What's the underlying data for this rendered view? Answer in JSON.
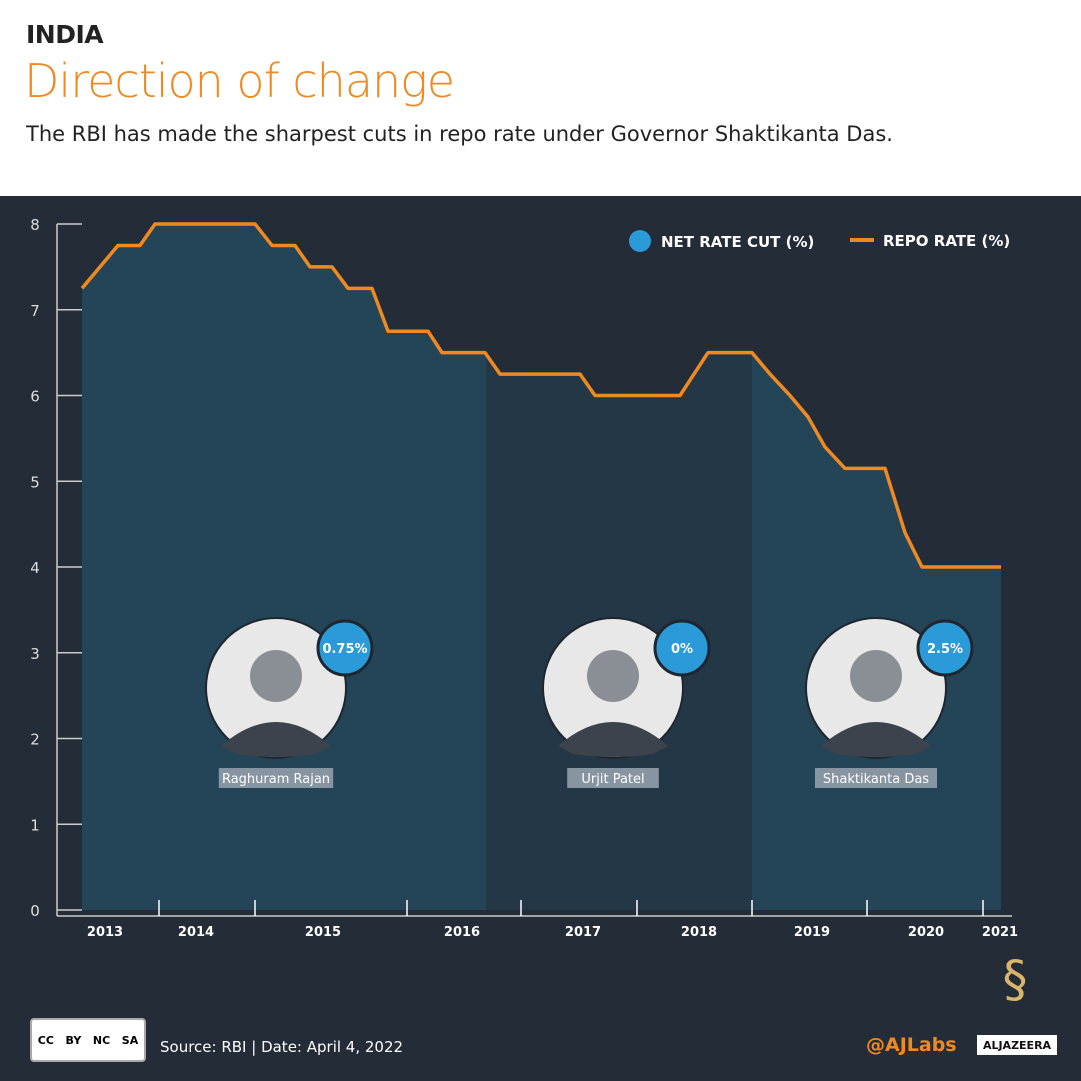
{
  "header": {
    "kicker": "INDIA",
    "title": "Direction of change",
    "subtitle": "The RBI has made the sharpest cuts in repo rate under Governor Shaktikanta Das."
  },
  "chart_data": {
    "type": "area",
    "ylim": [
      0,
      8
    ],
    "yticks": [
      "0",
      "1",
      "2",
      "3",
      "4",
      "5",
      "6",
      "7",
      "8"
    ],
    "xticks": [
      "2013",
      "2014",
      "2015",
      "2016",
      "2017",
      "2018",
      "2019",
      "2020",
      "2021"
    ],
    "legend": [
      {
        "name": "NET RATE CUT (%)",
        "color": "#2a9ad8",
        "marker": "circle"
      },
      {
        "name": "REPO RATE (%)",
        "color": "#ef8a22",
        "marker": "line"
      }
    ],
    "legend_position": "top-right",
    "series": [
      {
        "name": "REPO RATE (%)",
        "points": [
          {
            "date": "2013-09",
            "value": 7.25
          },
          {
            "date": "2013-10",
            "value": 7.5
          },
          {
            "date": "2013-10",
            "value": 7.75
          },
          {
            "date": "2013-12",
            "value": 7.75
          },
          {
            "date": "2014-01",
            "value": 8.0
          },
          {
            "date": "2014-12",
            "value": 8.0
          },
          {
            "date": "2015-01",
            "value": 7.75
          },
          {
            "date": "2015-02",
            "value": 7.75
          },
          {
            "date": "2015-03",
            "value": 7.5
          },
          {
            "date": "2015-05",
            "value": 7.5
          },
          {
            "date": "2015-06",
            "value": 7.25
          },
          {
            "date": "2015-08",
            "value": 7.25
          },
          {
            "date": "2015-09",
            "value": 6.75
          },
          {
            "date": "2016-03",
            "value": 6.75
          },
          {
            "date": "2016-04",
            "value": 6.5
          },
          {
            "date": "2016-09",
            "value": 6.5
          },
          {
            "date": "2016-10",
            "value": 6.25
          },
          {
            "date": "2017-07",
            "value": 6.25
          },
          {
            "date": "2017-08",
            "value": 6.0
          },
          {
            "date": "2018-05",
            "value": 6.0
          },
          {
            "date": "2018-08",
            "value": 6.5
          },
          {
            "date": "2018-12",
            "value": 6.5
          },
          {
            "date": "2019-02",
            "value": 6.25
          },
          {
            "date": "2019-04",
            "value": 6.0
          },
          {
            "date": "2019-06",
            "value": 5.75
          },
          {
            "date": "2019-08",
            "value": 5.4
          },
          {
            "date": "2019-10",
            "value": 5.15
          },
          {
            "date": "2020-02",
            "value": 5.15
          },
          {
            "date": "2020-03",
            "value": 4.4
          },
          {
            "date": "2020-05",
            "value": 4.0
          },
          {
            "date": "2022-04",
            "value": 4.0
          }
        ]
      }
    ],
    "governors": [
      {
        "name": "Raghuram Rajan",
        "net_rate_cut": "0.75%"
      },
      {
        "name": "Urjit Patel",
        "net_rate_cut": "0%"
      },
      {
        "name": "Shaktikanta Das",
        "net_rate_cut": "2.5%"
      }
    ],
    "colors": {
      "line": "#ef8a22",
      "shade_light": "#244457",
      "shade_dark": "#243746",
      "bubble": "#2a9ad8"
    }
  },
  "footer": {
    "license": [
      "BY",
      "NC",
      "SA"
    ],
    "source": "Source: RBI  |  Date: April 4, 2022",
    "handle": "@AJLabs",
    "logo": "ALJAZEERA"
  }
}
